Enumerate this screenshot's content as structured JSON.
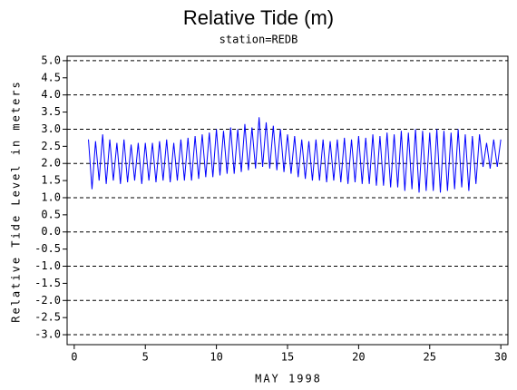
{
  "chart_data": {
    "type": "line",
    "title": "Relative Tide (m)",
    "subtitle": "station=REDB",
    "x_label": "MAY 1998",
    "y_label": "Relative Tide Level in meters",
    "x": [
      1,
      1.25,
      1.5,
      1.75,
      2,
      2.25,
      2.5,
      2.75,
      3,
      3.25,
      3.5,
      3.75,
      4,
      4.25,
      4.5,
      4.75,
      5,
      5.25,
      5.5,
      5.75,
      6,
      6.25,
      6.5,
      6.75,
      7,
      7.25,
      7.5,
      7.75,
      8,
      8.25,
      8.5,
      8.75,
      9,
      9.25,
      9.5,
      9.75,
      10,
      10.25,
      10.5,
      10.75,
      11,
      11.25,
      11.5,
      11.75,
      12,
      12.25,
      12.5,
      12.75,
      13,
      13.25,
      13.5,
      13.75,
      14,
      14.25,
      14.5,
      14.75,
      15,
      15.25,
      15.5,
      15.75,
      16,
      16.25,
      16.5,
      16.75,
      17,
      17.25,
      17.5,
      17.75,
      18,
      18.25,
      18.5,
      18.75,
      19,
      19.25,
      19.5,
      19.75,
      20,
      20.25,
      20.5,
      20.75,
      21,
      21.25,
      21.5,
      21.75,
      22,
      22.25,
      22.5,
      22.75,
      23,
      23.25,
      23.5,
      23.75,
      24,
      24.25,
      24.5,
      24.75,
      25,
      25.25,
      25.5,
      25.75,
      26,
      26.25,
      26.5,
      26.75,
      27,
      27.25,
      27.5,
      27.75,
      28,
      28.25,
      28.5,
      28.75,
      29,
      29.25,
      29.5,
      29.75,
      30
    ],
    "series": [
      {
        "name": "REDB",
        "color": "#0000ff",
        "values": [
          2.7,
          1.25,
          2.65,
          1.5,
          2.85,
          1.4,
          2.7,
          1.5,
          2.6,
          1.4,
          2.7,
          1.45,
          2.55,
          1.5,
          2.6,
          1.4,
          2.6,
          1.5,
          2.6,
          1.45,
          2.65,
          1.5,
          2.7,
          1.45,
          2.6,
          1.5,
          2.7,
          1.5,
          2.75,
          1.5,
          2.8,
          1.55,
          2.85,
          1.6,
          2.9,
          1.6,
          3.0,
          1.65,
          2.95,
          1.7,
          3.05,
          1.7,
          3.0,
          1.75,
          3.15,
          1.8,
          3.05,
          1.85,
          3.35,
          1.9,
          3.2,
          1.85,
          3.1,
          1.8,
          3.0,
          1.75,
          2.85,
          1.7,
          2.8,
          1.6,
          2.7,
          1.55,
          2.65,
          1.5,
          2.7,
          1.5,
          2.7,
          1.45,
          2.65,
          1.5,
          2.7,
          1.45,
          2.75,
          1.4,
          2.7,
          1.45,
          2.8,
          1.4,
          2.75,
          1.4,
          2.85,
          1.35,
          2.8,
          1.35,
          2.9,
          1.3,
          2.85,
          1.3,
          2.95,
          1.2,
          2.9,
          1.25,
          3.0,
          1.15,
          2.95,
          1.2,
          2.9,
          1.2,
          3.0,
          1.15,
          2.95,
          1.2,
          2.9,
          1.25,
          3.0,
          1.3,
          2.85,
          1.2,
          2.8,
          1.4,
          2.85,
          1.9,
          2.6,
          1.85,
          2.7,
          1.9,
          2.7
        ]
      }
    ],
    "xlim": [
      -0.5,
      30.5
    ],
    "xticks": [
      0,
      5,
      10,
      15,
      20,
      25,
      30
    ],
    "ylim": [
      -3.29,
      5.13
    ],
    "yticks": [
      {
        "value": -3,
        "label": "-3.0"
      },
      {
        "value": -2.5,
        "label": "-2.5"
      },
      {
        "value": -2,
        "label": "-2.0"
      },
      {
        "value": -1.5,
        "label": "-1.5"
      },
      {
        "value": -1,
        "label": "-1.0"
      },
      {
        "value": -0.5,
        "label": "-0.5"
      },
      {
        "value": 0,
        "label": "0.0"
      },
      {
        "value": 0.5,
        "label": "0.5"
      },
      {
        "value": 1,
        "label": "1.0"
      },
      {
        "value": 1.5,
        "label": "1.5"
      },
      {
        "value": 2,
        "label": "2.0"
      },
      {
        "value": 2.5,
        "label": "2.5"
      },
      {
        "value": 3,
        "label": "3.0"
      },
      {
        "value": 3.5,
        "label": "3.5"
      },
      {
        "value": 4,
        "label": "4.0"
      },
      {
        "value": 4.5,
        "label": "4.5"
      },
      {
        "value": 5,
        "label": "5.0"
      }
    ],
    "grid": true
  }
}
